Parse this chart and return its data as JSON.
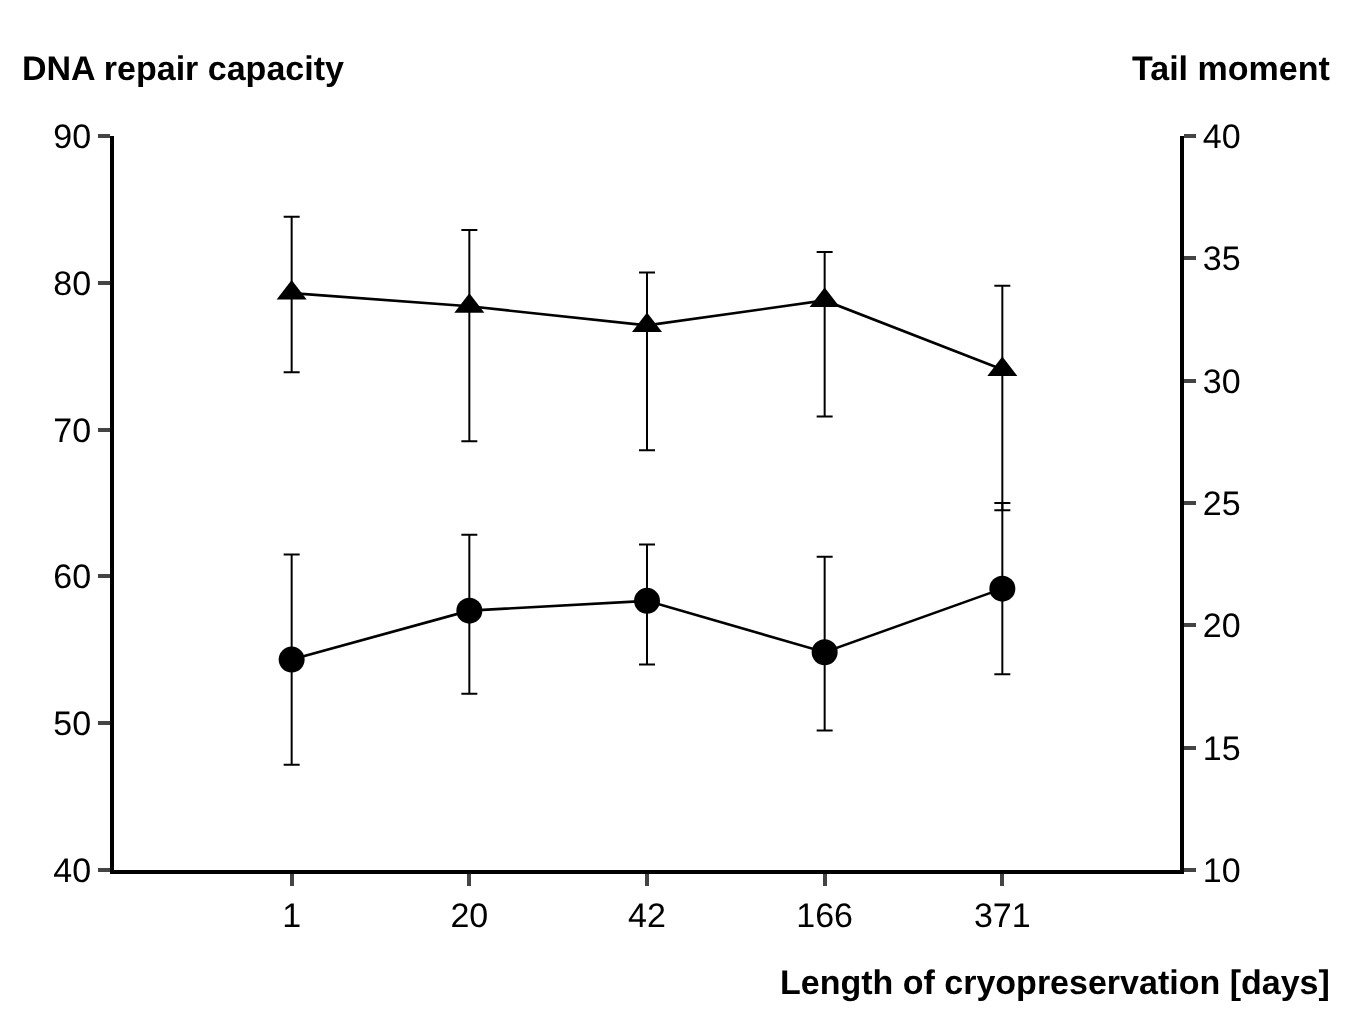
{
  "chart_data": {
    "type": "line",
    "ylabel": "DNA repair capacity",
    "y2label": "Tail moment",
    "xlabel": "Length of cryopreservation [days]",
    "categories": [
      "1",
      "20",
      "42",
      "166",
      "371"
    ],
    "series": [
      {
        "color": "#000000",
        "marker": "triangle",
        "values": [
          79.3,
          78.4,
          77.1,
          78.8,
          74.1
        ],
        "errors": [
          [
            73.9,
            84.5
          ],
          [
            69.2,
            83.6
          ],
          [
            68.6,
            80.7
          ],
          [
            70.9,
            82.1
          ],
          [
            64.5,
            79.8
          ]
        ]
      },
      {
        "color": "#000000",
        "marker": "circle",
        "axis": "y2",
        "values": [
          18.6,
          20.6,
          21.0,
          18.9,
          21.5
        ],
        "errors": [
          [
            14.3,
            22.9
          ],
          [
            17.2,
            23.7
          ],
          [
            18.4,
            23.3
          ],
          [
            15.7,
            22.8
          ],
          [
            18.0,
            25.0
          ]
        ]
      }
    ],
    "ylim": [
      40,
      90
    ],
    "yticks": [
      40,
      50,
      60,
      70,
      80,
      90
    ],
    "y2lim": [
      10,
      40
    ],
    "y2ticks": [
      10,
      15,
      20,
      25,
      30,
      35,
      40
    ],
    "line_style": "solid"
  }
}
